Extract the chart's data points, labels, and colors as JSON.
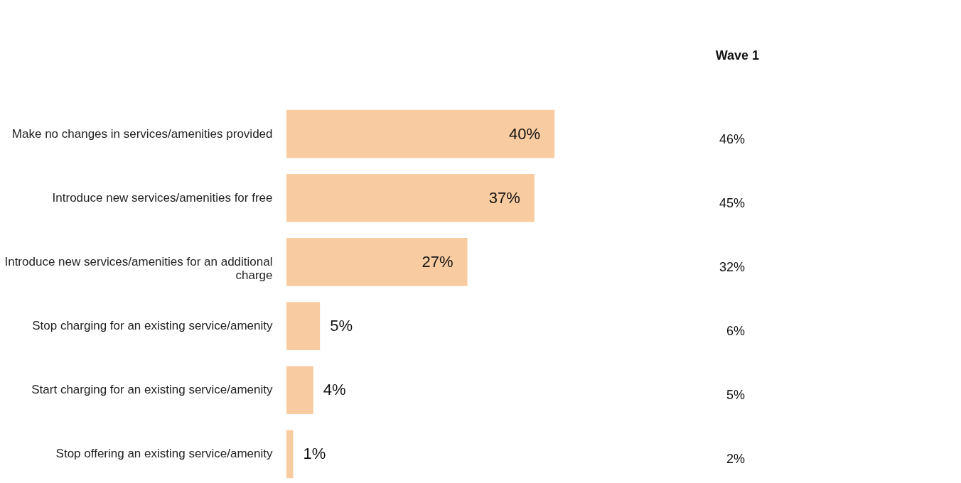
{
  "chart_data": {
    "type": "bar",
    "orientation": "horizontal",
    "categories": [
      "Make no changes in services/amenities provided",
      "Introduce new services/amenities for free",
      "Introduce new services/amenities for an additional charge",
      "Stop charging for an existing service/amenity",
      "Start charging for an existing service/amenity",
      "Stop offering an existing service/amenity"
    ],
    "values": [
      40,
      37,
      27,
      5,
      4,
      1
    ],
    "value_labels": [
      "40%",
      "37%",
      "27%",
      "5%",
      "4%",
      "1%"
    ],
    "color": "#f9cba0",
    "annotations": [
      "Wave 1",
      "46%",
      "45%",
      "32%",
      "6%",
      "5%",
      "2%"
    ]
  }
}
